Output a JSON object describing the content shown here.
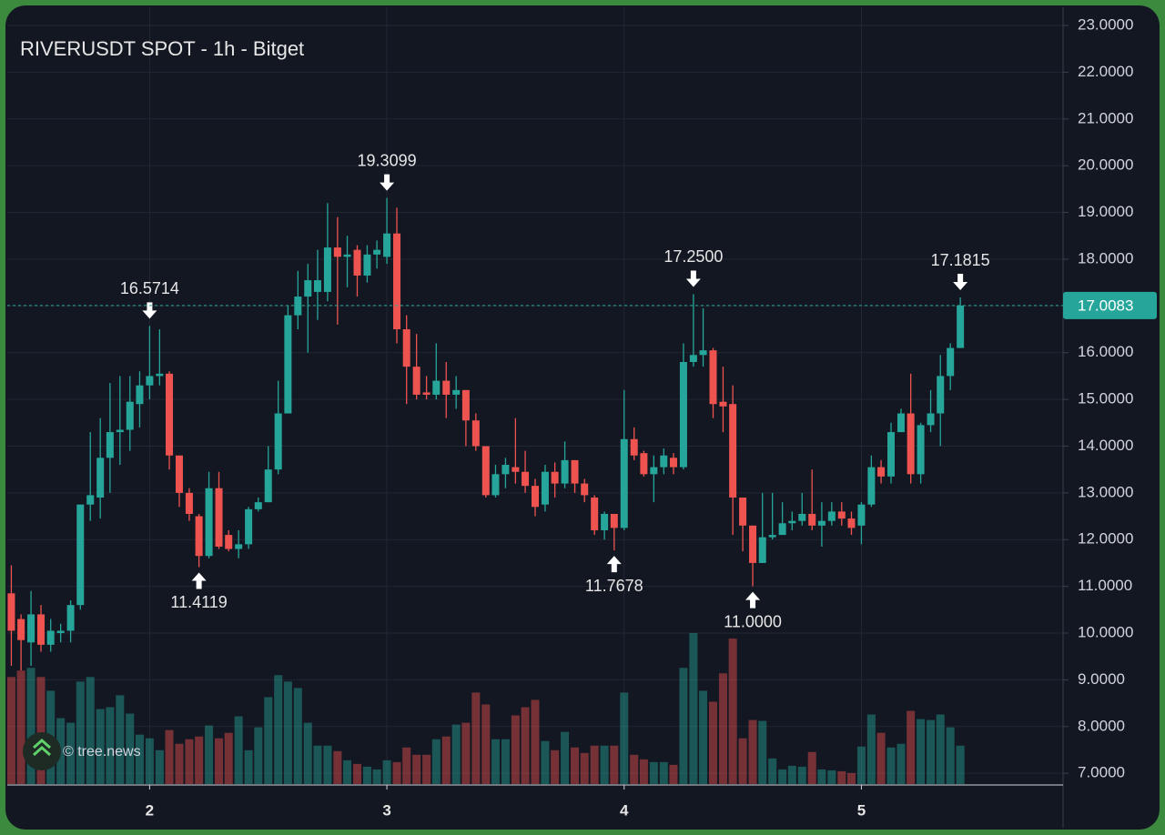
{
  "chart_data": {
    "type": "candlestick",
    "title": "RIVERUSDT SPOT - 1h - Bitget",
    "watermark": "© tree.news",
    "x": [
      1.417,
      1.458,
      1.5,
      1.542,
      1.583,
      1.625,
      1.667,
      1.708,
      1.75,
      1.792,
      1.833,
      1.875,
      1.917,
      1.958,
      2,
      2.042,
      2.083,
      2.125,
      2.167,
      2.208,
      2.25,
      2.292,
      2.333,
      2.375,
      2.417,
      2.458,
      2.5,
      2.542,
      2.583,
      2.625,
      2.667,
      2.708,
      2.75,
      2.792,
      2.833,
      2.875,
      2.917,
      2.958,
      3,
      3.042,
      3.083,
      3.125,
      3.167,
      3.208,
      3.25,
      3.292,
      3.333,
      3.375,
      3.417,
      3.458,
      3.5,
      3.542,
      3.583,
      3.625,
      3.667,
      3.708,
      3.75,
      3.792,
      3.833,
      3.875,
      3.917,
      3.958,
      4,
      4.042,
      4.083,
      4.125,
      4.167,
      4.208,
      4.25,
      4.292,
      4.333,
      4.375,
      4.417,
      4.458,
      4.5,
      4.542,
      4.583,
      4.625,
      4.667,
      4.708,
      4.75,
      4.792,
      4.833,
      4.875,
      4.917,
      4.958,
      5,
      5.042,
      5.083,
      5.125,
      5.167,
      5.208,
      5.25,
      5.292,
      5.333,
      5.375,
      5.417
    ],
    "open": [
      10.85,
      10.3,
      9.8,
      10.4,
      9.75,
      10.0,
      10.05,
      10.6,
      12.75,
      12.9,
      13.75,
      14.3,
      14.35,
      14.9,
      15.3,
      15.5,
      15.55,
      13.8,
      13.0,
      12.5,
      11.65,
      13.1,
      12.1,
      11.8,
      11.9,
      12.65,
      12.8,
      13.5,
      14.7,
      16.8,
      17.2,
      17.3,
      17.3,
      18.25,
      18.05,
      18.2,
      17.65,
      18.1,
      18.05,
      18.55,
      16.5,
      15.7,
      15.15,
      15.1,
      15.4,
      15.1,
      15.2,
      14.55,
      14.0,
      12.95,
      13.4,
      13.55,
      13.45,
      13.15,
      12.75,
      13.45,
      13.2,
      13.7,
      13.2,
      12.9,
      12.2,
      12.55,
      12.25,
      14.15,
      13.85,
      13.4,
      13.55,
      13.75,
      13.55,
      15.8,
      15.95,
      16.05,
      14.95,
      14.9,
      12.9,
      12.3,
      11.5,
      12.05,
      12.1,
      12.35,
      12.4,
      12.55,
      12.3,
      12.4,
      12.6,
      12.45,
      12.3,
      12.75,
      13.55,
      13.35,
      14.3,
      14.7,
      13.4,
      14.45,
      14.7,
      15.5,
      16.1
    ],
    "high": [
      11.45,
      10.4,
      10.9,
      10.6,
      10.3,
      10.2,
      10.7,
      12.75,
      14.3,
      14.6,
      15.35,
      15.5,
      15.5,
      15.6,
      16.5714,
      16.5,
      15.6,
      13.8,
      13.1,
      12.55,
      13.45,
      13.45,
      12.2,
      12.2,
      12.7,
      12.9,
      14.0,
      15.4,
      17.0,
      17.75,
      17.9,
      18.2,
      19.2,
      18.9,
      18.5,
      18.3,
      18.3,
      18.4,
      19.3099,
      19.1,
      16.8,
      16.4,
      15.5,
      16.2,
      15.8,
      15.5,
      15.2,
      14.7,
      14.0,
      13.6,
      13.75,
      14.6,
      13.9,
      13.3,
      13.6,
      13.65,
      14.1,
      13.7,
      13.3,
      12.95,
      12.6,
      12.55,
      15.2,
      14.4,
      13.9,
      13.8,
      13.95,
      13.85,
      16.2,
      17.25,
      16.95,
      16.1,
      15.7,
      15.3,
      12.9,
      12.3,
      13.0,
      13.0,
      12.8,
      12.6,
      13.0,
      13.5,
      12.8,
      12.8,
      12.8,
      12.6,
      12.8,
      13.8,
      13.7,
      14.5,
      14.8,
      15.55,
      14.5,
      15.2,
      15.95,
      16.2,
      17.1815
    ],
    "low": [
      9.3,
      9.2,
      9.3,
      9.6,
      9.6,
      9.8,
      9.8,
      10.5,
      12.4,
      12.45,
      13.0,
      13.6,
      13.9,
      14.4,
      15.0,
      15.3,
      13.5,
      12.7,
      12.4,
      11.4119,
      11.6,
      11.8,
      11.75,
      11.6,
      11.8,
      12.6,
      12.8,
      13.4,
      14.7,
      16.5,
      16.0,
      16.7,
      17.1,
      16.6,
      17.4,
      17.2,
      17.5,
      17.8,
      17.9,
      16.2,
      14.9,
      15.0,
      15.0,
      15.0,
      14.6,
      14.8,
      14.0,
      13.9,
      12.9,
      12.9,
      13.1,
      13.2,
      13.0,
      12.5,
      12.6,
      12.9,
      13.1,
      13.0,
      12.8,
      12.1,
      12.0,
      11.7678,
      12.2,
      13.7,
      13.35,
      12.8,
      13.4,
      13.4,
      13.5,
      15.7,
      15.7,
      14.6,
      14.3,
      12.1,
      11.75,
      11.0,
      11.5,
      12.0,
      12.1,
      12.2,
      12.3,
      12.2,
      11.85,
      12.3,
      12.3,
      12.1,
      11.9,
      12.7,
      13.2,
      13.2,
      14.3,
      13.2,
      13.2,
      14.3,
      14.0,
      15.2,
      16.1
    ],
    "close": [
      10.05,
      9.85,
      10.4,
      9.75,
      10.05,
      10.05,
      10.6,
      12.75,
      12.95,
      13.75,
      14.3,
      14.35,
      14.95,
      15.3,
      15.5,
      15.55,
      13.8,
      13.0,
      12.55,
      11.65,
      13.1,
      11.85,
      11.8,
      11.9,
      12.65,
      12.8,
      13.5,
      14.7,
      16.8,
      17.2,
      17.55,
      17.55,
      18.25,
      18.05,
      18.1,
      17.65,
      18.1,
      18.2,
      18.55,
      16.5,
      15.7,
      15.1,
      15.1,
      15.4,
      15.1,
      15.2,
      14.55,
      14.0,
      12.95,
      13.4,
      13.6,
      13.45,
      13.15,
      12.7,
      13.45,
      13.2,
      13.7,
      13.2,
      12.95,
      12.2,
      12.55,
      12.25,
      14.15,
      13.8,
      13.4,
      13.55,
      13.8,
      13.55,
      15.8,
      15.95,
      16.05,
      14.9,
      14.85,
      12.9,
      12.3,
      11.5,
      12.05,
      12.1,
      12.35,
      12.4,
      12.55,
      12.3,
      12.4,
      12.6,
      12.45,
      12.25,
      12.75,
      13.55,
      13.35,
      14.3,
      14.7,
      13.4,
      14.45,
      14.7,
      15.5,
      16.1,
      17.0083
    ],
    "volume": [
      117,
      124,
      127,
      117,
      102,
      72,
      67,
      112,
      117,
      82,
      84,
      97,
      77,
      54,
      50,
      37,
      59,
      44,
      49,
      52,
      64,
      50,
      56,
      74,
      37,
      62,
      95,
      119,
      112,
      105,
      67,
      42,
      42,
      36,
      26,
      22,
      19,
      16,
      26,
      24,
      40,
      32,
      32,
      49,
      52,
      65,
      67,
      100,
      87,
      49,
      49,
      75,
      84,
      92,
      47,
      37,
      57,
      40,
      34,
      42,
      42,
      42,
      100,
      32,
      27,
      24,
      24,
      21,
      127,
      165,
      102,
      90,
      121,
      159,
      50,
      70,
      69,
      28,
      16,
      20,
      19,
      35,
      16,
      15,
      14,
      12,
      41,
      76,
      56,
      40,
      44,
      80,
      71,
      70,
      76,
      62,
      42
    ],
    "up_color": "#26a69a",
    "down_color": "#ef5350",
    "xlim": [
      1.4,
      5.85
    ],
    "xticks": [
      2,
      3,
      4,
      5
    ],
    "ylim": [
      6.75,
      23.39
    ],
    "yticks": [
      {
        "value": 7,
        "label": "7.0000"
      },
      {
        "value": 8,
        "label": "8.0000"
      },
      {
        "value": 9,
        "label": "9.0000"
      },
      {
        "value": 10,
        "label": "10.0000"
      },
      {
        "value": 11,
        "label": "11.0000"
      },
      {
        "value": 12,
        "label": "12.0000"
      },
      {
        "value": 13,
        "label": "13.0000"
      },
      {
        "value": 14,
        "label": "14.0000"
      },
      {
        "value": 15,
        "label": "15.0000"
      },
      {
        "value": 16,
        "label": "16.0000"
      },
      {
        "value": 17,
        "label": "17.0000"
      },
      {
        "value": 18,
        "label": "18.0000"
      },
      {
        "value": 19,
        "label": "19.0000"
      },
      {
        "value": 20,
        "label": "20.0000"
      },
      {
        "value": 21,
        "label": "21.0000"
      },
      {
        "value": 22,
        "label": "22.0000"
      },
      {
        "value": 23,
        "label": "23.0000"
      }
    ],
    "grid": true,
    "last_price": {
      "value": 17.0083,
      "label": "17.0083"
    },
    "annotations": [
      {
        "x": 2,
        "value": 16.5714,
        "label": "16.5714"
      },
      {
        "x": 2.208,
        "value": 11.4119,
        "label": "11.4119"
      },
      {
        "x": 3,
        "value": 19.3099,
        "label": "19.3099"
      },
      {
        "x": 3.958,
        "value": 11.7678,
        "label": "11.7678"
      },
      {
        "x": 4.292,
        "value": 17.25,
        "label": "17.2500"
      },
      {
        "x": 4.542,
        "value": 11.0,
        "label": "11.0000"
      },
      {
        "x": 5.417,
        "value": 17.1815,
        "label": "17.1815"
      }
    ]
  }
}
